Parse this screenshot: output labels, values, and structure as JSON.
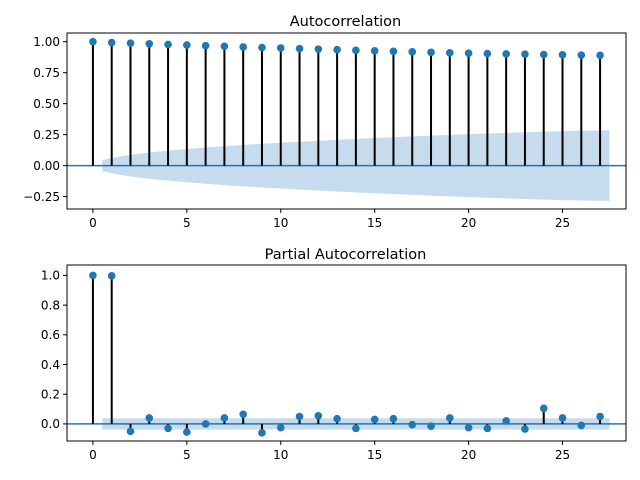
{
  "chart_data": [
    {
      "type": "stem",
      "title": "Autocorrelation",
      "xlabel": "",
      "ylabel": "",
      "xlim": [
        -1.38,
        28.38
      ],
      "ylim": [
        -0.35,
        1.07
      ],
      "xticks": [
        "0",
        "5",
        "10",
        "15",
        "20",
        "25"
      ],
      "xtick_values": [
        0,
        5,
        10,
        15,
        20,
        25
      ],
      "yticks": [
        "−0.25",
        "0.00",
        "0.25",
        "0.50",
        "0.75",
        "1.00"
      ],
      "ytick_values": [
        -0.25,
        0.0,
        0.25,
        0.5,
        0.75,
        1.0
      ],
      "x": [
        0,
        1,
        2,
        3,
        4,
        5,
        6,
        7,
        8,
        9,
        10,
        11,
        12,
        13,
        14,
        15,
        16,
        17,
        18,
        19,
        20,
        21,
        22,
        23,
        24,
        25,
        26,
        27
      ],
      "values": [
        1.0,
        0.993,
        0.988,
        0.983,
        0.978,
        0.973,
        0.968,
        0.963,
        0.958,
        0.953,
        0.949,
        0.944,
        0.94,
        0.935,
        0.93,
        0.926,
        0.922,
        0.918,
        0.914,
        0.91,
        0.907,
        0.904,
        0.901,
        0.899,
        0.896,
        0.894,
        0.892,
        0.89
      ],
      "confidence_band": {
        "x": [
          0.5,
          1,
          2,
          3,
          4,
          5,
          6,
          7,
          8,
          9,
          10,
          11,
          12,
          13,
          14,
          15,
          16,
          17,
          18,
          19,
          20,
          21,
          22,
          23,
          24,
          25,
          26,
          27,
          27.5
        ],
        "upper": [
          0.045,
          0.062,
          0.088,
          0.106,
          0.121,
          0.134,
          0.146,
          0.157,
          0.167,
          0.176,
          0.185,
          0.193,
          0.201,
          0.209,
          0.216,
          0.223,
          0.229,
          0.236,
          0.242,
          0.248,
          0.254,
          0.259,
          0.264,
          0.269,
          0.274,
          0.278,
          0.281,
          0.283,
          0.284
        ]
      }
    },
    {
      "type": "stem",
      "title": "Partial Autocorrelation",
      "xlabel": "",
      "ylabel": "",
      "xlim": [
        -1.38,
        28.38
      ],
      "ylim": [
        -0.115,
        1.07
      ],
      "xticks": [
        "0",
        "5",
        "10",
        "15",
        "20",
        "25"
      ],
      "xtick_values": [
        0,
        5,
        10,
        15,
        20,
        25
      ],
      "yticks": [
        "0.0",
        "0.2",
        "0.4",
        "0.6",
        "0.8",
        "1.0"
      ],
      "ytick_values": [
        0.0,
        0.2,
        0.4,
        0.6,
        0.8,
        1.0
      ],
      "x": [
        0,
        1,
        2,
        3,
        4,
        5,
        6,
        7,
        8,
        9,
        10,
        11,
        12,
        13,
        14,
        15,
        16,
        17,
        18,
        19,
        20,
        21,
        22,
        23,
        24,
        25,
        26,
        27
      ],
      "values": [
        1.0,
        0.997,
        -0.05,
        0.04,
        -0.03,
        -0.055,
        0.0,
        0.04,
        0.065,
        -0.06,
        -0.025,
        0.05,
        0.055,
        0.035,
        -0.03,
        0.03,
        0.035,
        -0.005,
        -0.015,
        0.04,
        -0.025,
        -0.03,
        0.02,
        -0.035,
        0.105,
        0.04,
        -0.01,
        0.05
      ],
      "confidence_band": {
        "x": [
          0.5,
          27.5
        ],
        "upper": [
          0.038,
          0.038
        ]
      }
    }
  ],
  "colors": {
    "marker": "#1f77b4",
    "stem": "#000000",
    "baseline": "#1f77b4",
    "band": "#c6dbed"
  }
}
